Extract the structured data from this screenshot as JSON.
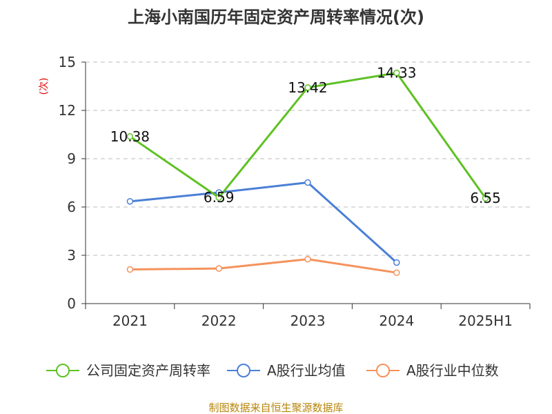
{
  "chart_data": {
    "type": "line",
    "title": "上海小南国历年固定资产周转率情况(次)",
    "ylabel": "(次)",
    "xlabel": "",
    "categories": [
      "2021",
      "2022",
      "2023",
      "2024",
      "2025H1"
    ],
    "ylim": [
      0,
      15
    ],
    "yticks": [
      0,
      3,
      6,
      9,
      12,
      15
    ],
    "grid": true,
    "legend_position": "bottom",
    "series": [
      {
        "name": "公司固定资产周转率",
        "color": "#5dc122",
        "values": [
          10.38,
          6.59,
          13.42,
          14.33,
          6.55
        ],
        "labels": [
          "10.38",
          "6.59",
          "13.42",
          "14.33",
          "6.55"
        ]
      },
      {
        "name": "A股行业均值",
        "color": "#4a7fd6",
        "values": [
          6.35,
          6.9,
          7.52,
          2.55,
          null
        ]
      },
      {
        "name": "A股行业中位数",
        "color": "#f5925c",
        "values": [
          2.12,
          2.18,
          2.76,
          1.92,
          null
        ]
      }
    ]
  },
  "source_text": "制图数据来自恒生聚源数据库"
}
